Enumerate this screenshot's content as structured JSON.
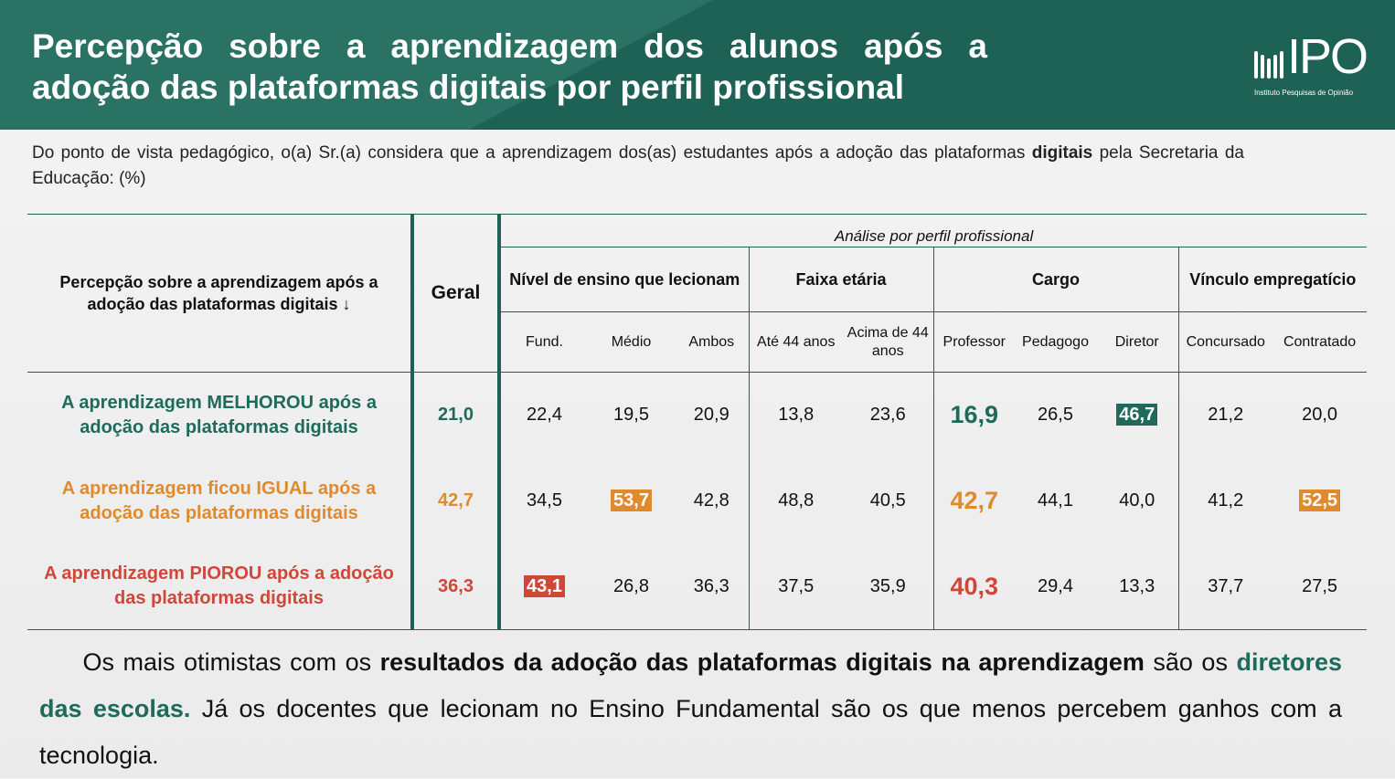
{
  "header": {
    "title": "Percepção sobre a aprendizagem dos alunos após a adoção das plataformas digitais por perfil profissional",
    "logo": {
      "name": "IPO",
      "subtitle": "Instituto Pesquisas de Opinião"
    }
  },
  "question": {
    "text": "Do ponto de vista pedagógico, o(a) Sr.(a) considera que a aprendizagem dos(as) estudantes após a adoção das plataformas ",
    "bold": "digitais",
    "rest": " pela Secretaria da Educação: (%)"
  },
  "colors": {
    "green": "#1e6b5c",
    "orange": "#e08a2e",
    "red": "#d0473a"
  },
  "table": {
    "row_header": "Percepção sobre a aprendizagem após a adoção das plataformas digitais ↓",
    "geral": "Geral",
    "analysis": "Análise por perfil profissional",
    "groups": [
      "Nível de ensino que lecionam",
      "Faixa etária",
      "Cargo",
      "Vínculo empregatício"
    ],
    "subcols": [
      "Fund.",
      "Médio",
      "Ambos",
      "Até 44 anos",
      "Acima de 44 anos",
      "Professor",
      "Pedagogo",
      "Diretor",
      "Concursado",
      "Contratado"
    ],
    "rows": [
      {
        "label": "A aprendizagem MELHOROU após a adoção das plataformas digitais",
        "color": "#1e6b5c",
        "geral": "21,0",
        "values": [
          "22,4",
          "19,5",
          "20,9",
          "13,8",
          "23,6",
          "16,9",
          "26,5",
          "46,7",
          "21,2",
          "20,0"
        ],
        "highlight": [
          7
        ]
      },
      {
        "label": "A aprendizagem ficou IGUAL após a adoção das plataformas digitais",
        "color": "#e08a2e",
        "geral": "42,7",
        "values": [
          "34,5",
          "53,7",
          "42,8",
          "48,8",
          "40,5",
          "42,7",
          "44,1",
          "40,0",
          "41,2",
          "52,5"
        ],
        "highlight": [
          1,
          9
        ]
      },
      {
        "label": "A aprendizagem PIOROU após a adoção das plataformas digitais",
        "color": "#d0473a",
        "geral": "36,3",
        "values": [
          "43,1",
          "26,8",
          "36,3",
          "37,5",
          "35,9",
          "40,3",
          "29,4",
          "13,3",
          "37,7",
          "27,5"
        ],
        "highlight": [
          0
        ]
      }
    ]
  },
  "footer": {
    "p1": "Os mais otimistas com os ",
    "b1": "resultados da adoção das plataformas digitais na aprendizagem",
    "p2": " são os ",
    "g1": "diretores das escolas.",
    "p3": " Já os docentes que lecionam no Ensino Fundamental são os que menos percebem ganhos com a tecnologia."
  }
}
